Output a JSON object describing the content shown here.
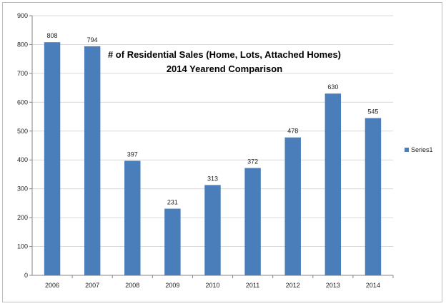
{
  "chart_data": {
    "type": "bar",
    "title": "# of Residential Sales (Home, Lots, Attached Homes)",
    "subtitle": "2014 Yearend Comparison",
    "categories": [
      "2006",
      "2007",
      "2008",
      "2009",
      "2010",
      "2011",
      "2012",
      "2013",
      "2014"
    ],
    "series": [
      {
        "name": "Series1",
        "values": [
          808,
          794,
          397,
          231,
          313,
          372,
          478,
          630,
          545
        ]
      }
    ],
    "ylim": [
      0,
      900
    ],
    "yticks": [
      0,
      100,
      200,
      300,
      400,
      500,
      600,
      700,
      800,
      900
    ],
    "grid": true,
    "legend": "right",
    "colors": {
      "bar": "#4a7ebb",
      "grid": "#d9d9d9",
      "axis": "#868686"
    }
  }
}
